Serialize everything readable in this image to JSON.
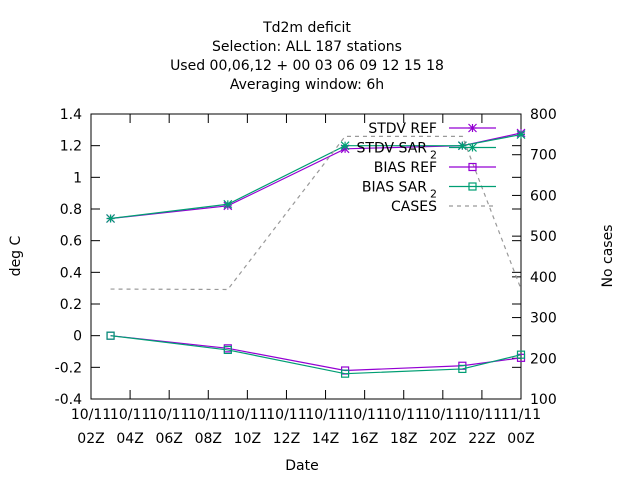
{
  "chart_data": {
    "type": "line",
    "title_lines": [
      "Td2m deficit",
      "Selection: ALL     187 stations",
      "Used  00,06,12  + 00 03 06 09 12 15 18",
      "Averaging window:  6h"
    ],
    "xlabel": "Date",
    "ylabel": "deg C",
    "y2label": "No cases",
    "ylim": [
      -0.4,
      1.4
    ],
    "y2lim": [
      100,
      800
    ],
    "xlim": [
      0,
      22
    ],
    "x_tick_values": [
      0,
      2,
      4,
      6,
      8,
      10,
      12,
      14,
      16,
      18,
      20,
      22
    ],
    "x_tick_labels": [
      [
        "10/11",
        "02Z"
      ],
      [
        "10/11",
        "04Z"
      ],
      [
        "10/11",
        "06Z"
      ],
      [
        "10/11",
        "08Z"
      ],
      [
        "10/11",
        "10Z"
      ],
      [
        "10/11",
        "12Z"
      ],
      [
        "10/11",
        "14Z"
      ],
      [
        "10/11",
        "16Z"
      ],
      [
        "10/11",
        "18Z"
      ],
      [
        "10/11",
        "20Z"
      ],
      [
        "10/11",
        "22Z"
      ],
      [
        "11/11",
        "00Z"
      ]
    ],
    "y_ticks": [
      "-0.4",
      "-0.2",
      "0",
      "0.2",
      "0.4",
      "0.6",
      "0.8",
      "1",
      "1.2",
      "1.4"
    ],
    "y2_ticks": [
      "100",
      "200",
      "300",
      "400",
      "500",
      "600",
      "700",
      "800"
    ],
    "grid": false,
    "legend_position": "top-right",
    "series": [
      {
        "name": "STDV REF",
        "axis": "y",
        "color": "#9400d3",
        "marker": "star",
        "dash": "",
        "x": [
          1,
          7,
          13,
          19,
          22
        ],
        "y": [
          0.74,
          0.82,
          1.18,
          1.2,
          1.28
        ]
      },
      {
        "name": "STDV SAR",
        "name_sub": "2",
        "axis": "y",
        "color": "#009e73",
        "marker": "star",
        "dash": "",
        "x": [
          1,
          7,
          13,
          19,
          22
        ],
        "y": [
          0.74,
          0.83,
          1.2,
          1.2,
          1.27
        ]
      },
      {
        "name": "BIAS REF",
        "axis": "y",
        "color": "#9400d3",
        "marker": "square",
        "dash": "",
        "x": [
          1,
          7,
          13,
          19,
          22
        ],
        "y": [
          0.0,
          -0.08,
          -0.22,
          -0.19,
          -0.14
        ]
      },
      {
        "name": "BIAS SAR",
        "name_sub": "2",
        "axis": "y",
        "color": "#009e73",
        "marker": "square",
        "dash": "",
        "x": [
          1,
          7,
          13,
          19,
          22
        ],
        "y": [
          0.0,
          -0.09,
          -0.24,
          -0.21,
          -0.12
        ]
      },
      {
        "name": "CASES",
        "axis": "y2",
        "color": "#999999",
        "marker": "none",
        "dash": "4,4",
        "x": [
          1,
          7,
          13,
          19,
          22
        ],
        "y": [
          370,
          369,
          745,
          745,
          370
        ]
      }
    ]
  }
}
